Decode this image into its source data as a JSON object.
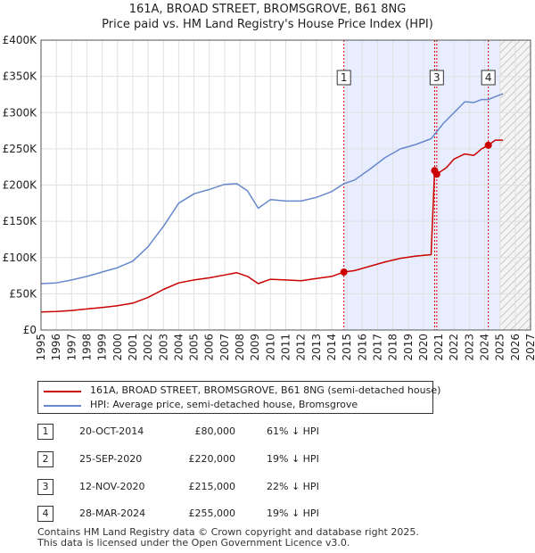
{
  "chart_data": {
    "type": "line",
    "title": "161A, BROAD STREET, BROMSGROVE, B61 8NG",
    "subtitle": "Price paid vs. HM Land Registry's House Price Index (HPI)",
    "xlim": [
      1995,
      2027
    ],
    "ylim": [
      0,
      400000
    ],
    "x_ticks": [
      "1995",
      "1996",
      "1997",
      "1998",
      "1999",
      "2000",
      "2001",
      "2002",
      "2003",
      "2004",
      "2005",
      "2006",
      "2007",
      "2008",
      "2009",
      "2010",
      "2011",
      "2012",
      "2013",
      "2014",
      "2015",
      "2016",
      "2017",
      "2018",
      "2019",
      "2020",
      "2021",
      "2022",
      "2023",
      "2024",
      "2025",
      "2026",
      "2027"
    ],
    "y_ticks": [
      {
        "value": 0,
        "label": "£0"
      },
      {
        "value": 50000,
        "label": "£50K"
      },
      {
        "value": 100000,
        "label": "£100K"
      },
      {
        "value": 150000,
        "label": "£150K"
      },
      {
        "value": 200000,
        "label": "£200K"
      },
      {
        "value": 250000,
        "label": "£250K"
      },
      {
        "value": 300000,
        "label": "£300K"
      },
      {
        "value": 350000,
        "label": "£350K"
      },
      {
        "value": 400000,
        "label": "£400K"
      }
    ],
    "shaded_band": [
      2014.8,
      2025.0
    ],
    "future_hatch_from": 2025.0,
    "series": [
      {
        "name": "161A, BROAD STREET, BROMSGROVE, B61 8NG (semi-detached house)",
        "color": "#cc0000",
        "points": [
          [
            1995,
            25000
          ],
          [
            1996,
            25500
          ],
          [
            1997,
            27000
          ],
          [
            1998,
            29000
          ],
          [
            1999,
            31000
          ],
          [
            2000,
            33500
          ],
          [
            2001,
            37000
          ],
          [
            2002,
            45000
          ],
          [
            2003,
            56000
          ],
          [
            2004,
            65000
          ],
          [
            2005,
            69000
          ],
          [
            2006,
            72000
          ],
          [
            2007,
            76000
          ],
          [
            2007.8,
            79000
          ],
          [
            2008.5,
            74000
          ],
          [
            2009.2,
            64000
          ],
          [
            2010,
            70000
          ],
          [
            2011,
            69000
          ],
          [
            2012,
            68000
          ],
          [
            2013,
            71000
          ],
          [
            2014,
            74000
          ],
          [
            2014.8,
            80000
          ],
          [
            2015.5,
            82000
          ],
          [
            2016.5,
            88000
          ],
          [
            2017.5,
            94000
          ],
          [
            2018.5,
            99000
          ],
          [
            2019.5,
            102000
          ],
          [
            2020.5,
            104000
          ],
          [
            2020.73,
            220000
          ],
          [
            2020.87,
            215000
          ],
          [
            2021.5,
            224000
          ],
          [
            2022,
            236000
          ],
          [
            2022.7,
            243000
          ],
          [
            2023.3,
            241000
          ],
          [
            2023.8,
            250000
          ],
          [
            2024.24,
            255000
          ],
          [
            2024.7,
            262000
          ],
          [
            2025.2,
            262000
          ]
        ]
      },
      {
        "name": "HPI: Average price, semi-detached house, Bromsgrove",
        "color": "#6688cc",
        "points": [
          [
            1995,
            64000
          ],
          [
            1996,
            65000
          ],
          [
            1997,
            69000
          ],
          [
            1998,
            74000
          ],
          [
            1999,
            80000
          ],
          [
            2000,
            86000
          ],
          [
            2001,
            95000
          ],
          [
            2002,
            115000
          ],
          [
            2003,
            143000
          ],
          [
            2004,
            175000
          ],
          [
            2005,
            188000
          ],
          [
            2006,
            194000
          ],
          [
            2007,
            201000
          ],
          [
            2007.8,
            202000
          ],
          [
            2008.5,
            192000
          ],
          [
            2009.2,
            168000
          ],
          [
            2010,
            180000
          ],
          [
            2011,
            178000
          ],
          [
            2012,
            178000
          ],
          [
            2013,
            183000
          ],
          [
            2014,
            191000
          ],
          [
            2014.8,
            202000
          ],
          [
            2015.5,
            207000
          ],
          [
            2016.5,
            222000
          ],
          [
            2017.5,
            238000
          ],
          [
            2018.5,
            250000
          ],
          [
            2019.5,
            256000
          ],
          [
            2020.5,
            264000
          ],
          [
            2021.3,
            285000
          ],
          [
            2022,
            300000
          ],
          [
            2022.7,
            315000
          ],
          [
            2023.3,
            314000
          ],
          [
            2023.8,
            318000
          ],
          [
            2024.24,
            318000
          ],
          [
            2024.7,
            322000
          ],
          [
            2025.2,
            326000
          ]
        ]
      }
    ],
    "sales": [
      {
        "id": "1",
        "x": 2014.8,
        "price": 80000
      },
      {
        "id": "2",
        "x": 2020.73,
        "price": 220000
      },
      {
        "id": "3",
        "x": 2020.87,
        "price": 215000
      },
      {
        "id": "4",
        "x": 2024.24,
        "price": 255000
      }
    ],
    "annotations": [
      {
        "label": "1",
        "x": 2014.8
      },
      {
        "label": "3",
        "x": 2020.87
      },
      {
        "label": "4",
        "x": 2024.24
      }
    ]
  },
  "legend": {
    "property_label": "161A, BROAD STREET, BROMSGROVE, B61 8NG (semi-detached house)",
    "hpi_label": "HPI: Average price, semi-detached house, Bromsgrove"
  },
  "transactions": [
    {
      "num": "1",
      "date": "20-OCT-2014",
      "price": "£80,000",
      "hpi": "61% ↓ HPI"
    },
    {
      "num": "2",
      "date": "25-SEP-2020",
      "price": "£220,000",
      "hpi": "19% ↓ HPI"
    },
    {
      "num": "3",
      "date": "12-NOV-2020",
      "price": "£215,000",
      "hpi": "22% ↓ HPI"
    },
    {
      "num": "4",
      "date": "28-MAR-2024",
      "price": "£255,000",
      "hpi": "19% ↓ HPI"
    }
  ],
  "footer": {
    "line1": "Contains HM Land Registry data © Crown copyright and database right 2025.",
    "line2": "This data is licensed under the Open Government Licence v3.0."
  },
  "colors": {
    "property": "#cc0000",
    "hpi": "#6688cc",
    "band": "#e8eeff",
    "grid": "#e0e0e0"
  }
}
